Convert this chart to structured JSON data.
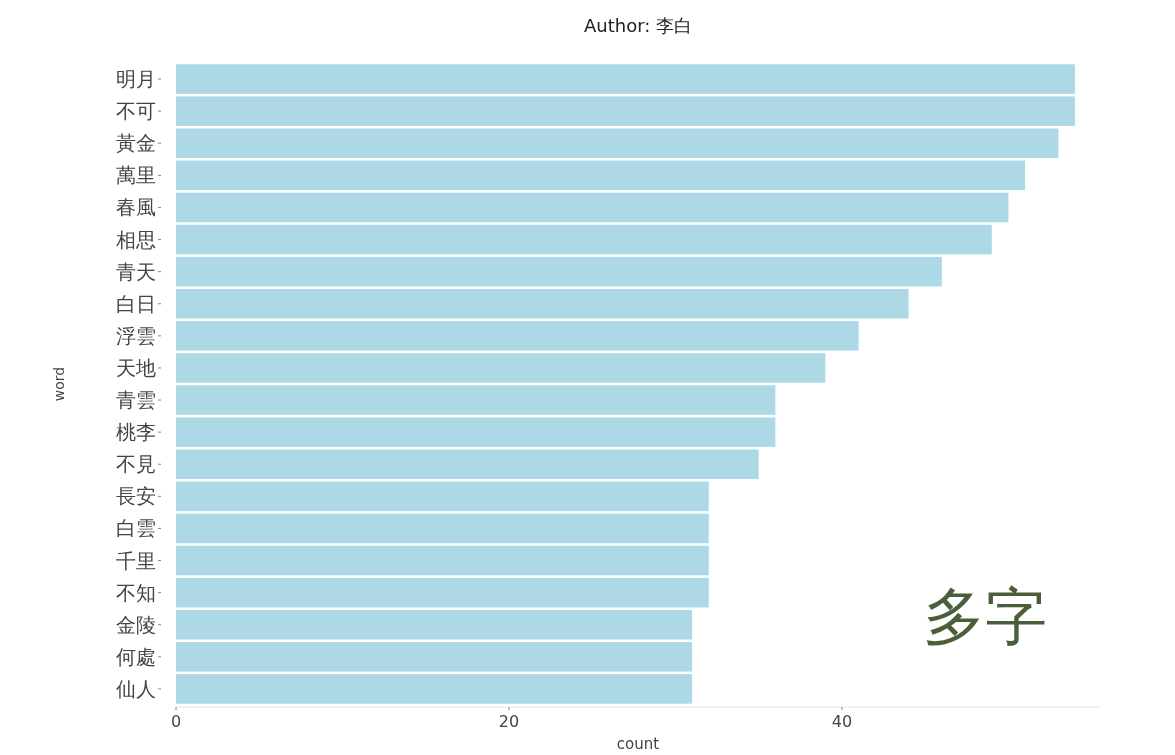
{
  "chart_data": {
    "type": "bar",
    "orientation": "horizontal",
    "title": "Author: 李白",
    "xlabel": "count",
    "ylabel": "word",
    "categories": [
      "明月",
      "不可",
      "黃金",
      "萬里",
      "春風",
      "相思",
      "青天",
      "白日",
      "浮雲",
      "天地",
      "青雲",
      "桃李",
      "不見",
      "長安",
      "白雲",
      "千里",
      "不知",
      "金陵",
      "何處",
      "仙人"
    ],
    "values": [
      54,
      54,
      53,
      51,
      50,
      49,
      46,
      44,
      41,
      39,
      36,
      36,
      35,
      32,
      32,
      32,
      32,
      31,
      31,
      31
    ],
    "color": "#add8e6",
    "xlim": [
      0,
      55.5
    ],
    "xticks": [
      0,
      20,
      40
    ],
    "grid": false,
    "annotations": [
      "多字"
    ]
  }
}
